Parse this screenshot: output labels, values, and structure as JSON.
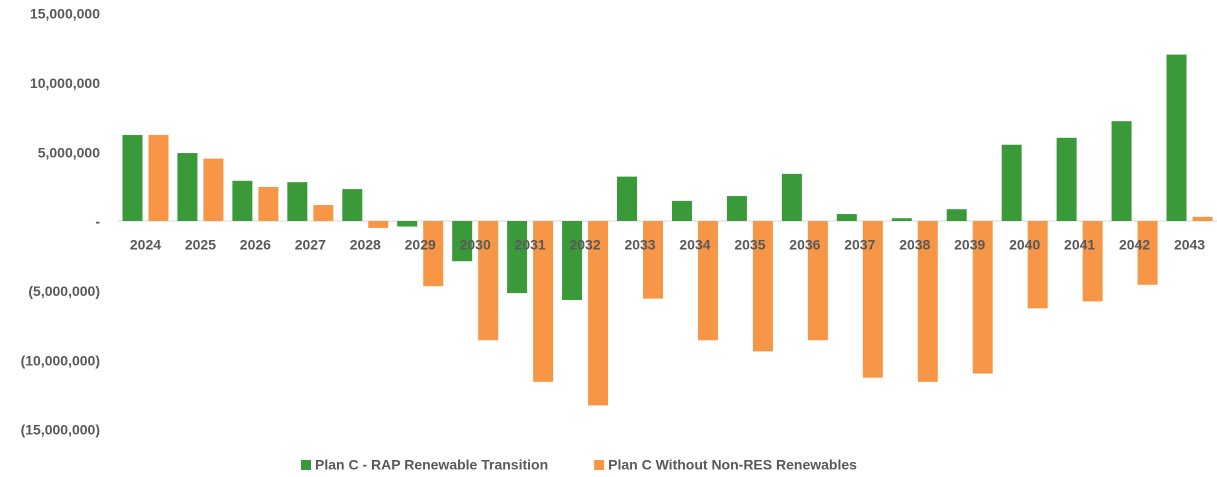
{
  "chart_data": {
    "type": "bar",
    "categories": [
      "2024",
      "2025",
      "2026",
      "2027",
      "2028",
      "2029",
      "2030",
      "2031",
      "2032",
      "2033",
      "2034",
      "2035",
      "2036",
      "2037",
      "2038",
      "2039",
      "2040",
      "2041",
      "2042",
      "2043"
    ],
    "series": [
      {
        "name": "Plan C - RAP Renewable Transition",
        "color": "#3a9a3a",
        "values": [
          6200000,
          4900000,
          2900000,
          2800000,
          2300000,
          -400000,
          -2900000,
          -5200000,
          -5700000,
          3200000,
          1450000,
          1800000,
          3400000,
          500000,
          200000,
          850000,
          5500000,
          6000000,
          7200000,
          12000000
        ]
      },
      {
        "name": "Plan C Without Non-RES Renewables",
        "color": "#f79646",
        "values": [
          6200000,
          4500000,
          2450000,
          1150000,
          -500000,
          -4700000,
          -8600000,
          -11600000,
          -13300000,
          -5600000,
          -8600000,
          -9400000,
          -8600000,
          -11300000,
          -11600000,
          -11000000,
          -6300000,
          -5800000,
          -4600000,
          300000
        ]
      }
    ],
    "ylim": [
      -15000000,
      15000000
    ],
    "yticks": [
      {
        "value": 15000000,
        "label": "15,000,000"
      },
      {
        "value": 10000000,
        "label": "10,000,000"
      },
      {
        "value": 5000000,
        "label": "5,000,000"
      },
      {
        "value": 0,
        "label": "-"
      },
      {
        "value": -5000000,
        "label": "(5,000,000)"
      },
      {
        "value": -10000000,
        "label": "(10,000,000)"
      },
      {
        "value": -15000000,
        "label": "(15,000,000)"
      }
    ],
    "grid": false,
    "legend": "bottom"
  }
}
